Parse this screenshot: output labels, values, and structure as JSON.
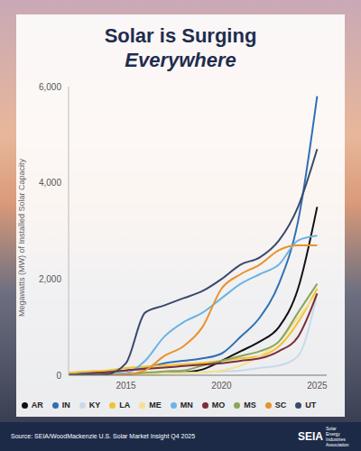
{
  "chart_data": {
    "type": "line",
    "title": "Solar is Surging",
    "subtitle": "Everywhere",
    "y_label": "Megawatts (MW) of Installed Solar Capacity",
    "source": "Source: SEIA/WoodMackenzie U.S. Solar Market Insight Q4 2025",
    "logo": {
      "name": "SEIA",
      "full_name": "Solar Energy Industries Association"
    },
    "x": [
      2012,
      2013,
      2014,
      2015,
      2016,
      2017,
      2018,
      2019,
      2020,
      2021,
      2022,
      2023,
      2024,
      2025
    ],
    "xlim": [
      2012,
      2025.5
    ],
    "xticks": [
      2015,
      2020,
      2025
    ],
    "ylim": [
      0,
      6000
    ],
    "yticks": [
      0,
      {
        "value": 2000,
        "label": "2,000"
      },
      {
        "value": 4000,
        "label": "4,000"
      },
      {
        "value": 6000,
        "label": "6,000"
      }
    ],
    "grid": false,
    "legend": "bottom",
    "series": [
      {
        "name": "AR",
        "color": "#111111",
        "values": [
          0,
          0,
          5,
          10,
          20,
          40,
          60,
          120,
          300,
          500,
          700,
          1000,
          1800,
          3500
        ]
      },
      {
        "name": "IN",
        "color": "#2f6fb5",
        "values": [
          20,
          50,
          80,
          100,
          150,
          250,
          300,
          350,
          450,
          800,
          1200,
          1900,
          3200,
          5800
        ]
      },
      {
        "name": "KY",
        "color": "#c9d9ea",
        "values": [
          0,
          5,
          10,
          20,
          30,
          40,
          50,
          60,
          80,
          100,
          150,
          200,
          400,
          1700
        ]
      },
      {
        "name": "LA",
        "color": "#f2c230",
        "values": [
          50,
          80,
          100,
          150,
          180,
          200,
          230,
          260,
          300,
          350,
          400,
          600,
          1100,
          1800
        ]
      },
      {
        "name": "ME",
        "color": "#f6e08e",
        "values": [
          0,
          5,
          10,
          15,
          20,
          30,
          40,
          60,
          100,
          200,
          400,
          700,
          1200,
          1700
        ]
      },
      {
        "name": "MN",
        "color": "#6cb4e4",
        "values": [
          10,
          15,
          20,
          40,
          300,
          800,
          1100,
          1300,
          1600,
          1900,
          2100,
          2300,
          2800,
          2900
        ]
      },
      {
        "name": "MS",
        "color": "#8aa65a",
        "values": [
          0,
          5,
          10,
          20,
          50,
          80,
          100,
          200,
          300,
          400,
          500,
          700,
          1300,
          1900
        ]
      },
      {
        "name": "MO",
        "color": "#7a2e3a",
        "values": [
          10,
          30,
          60,
          100,
          130,
          160,
          190,
          220,
          250,
          300,
          350,
          500,
          800,
          1700
        ]
      },
      {
        "name": "SC",
        "color": "#e8922d",
        "values": [
          0,
          5,
          10,
          20,
          100,
          400,
          600,
          1000,
          1800,
          2100,
          2300,
          2600,
          2700,
          2700
        ]
      },
      {
        "name": "UT",
        "color": "#3a4a6b",
        "values": [
          0,
          5,
          20,
          250,
          1300,
          1450,
          1600,
          1750,
          2000,
          2300,
          2450,
          2800,
          3500,
          4700
        ]
      }
    ]
  }
}
